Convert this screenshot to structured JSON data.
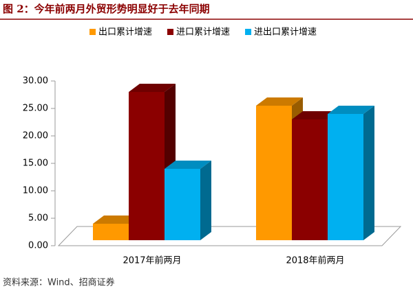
{
  "chart_data": {
    "type": "bar3d",
    "title": "图 2：今年前两月外贸形势明显好于去年同期",
    "source": "资料来源：Wind、招商证券",
    "categories": [
      "2017年前两月",
      "2018年前两月"
    ],
    "series": [
      {
        "name": "出口累计增速",
        "color": "#FF9900",
        "values": [
          3,
          24.5
        ]
      },
      {
        "name": "进口累计增速",
        "color": "#8B0000",
        "values": [
          27,
          22
        ]
      },
      {
        "name": "进出口累计增速",
        "color": "#00B0F0",
        "values": [
          13,
          23
        ]
      }
    ],
    "ylim": [
      0,
      30
    ],
    "yticks": [
      {
        "value": 0,
        "label": "0.00"
      },
      {
        "value": 5,
        "label": "5.00"
      },
      {
        "value": 10,
        "label": "10.00"
      },
      {
        "value": 15,
        "label": "15.00"
      },
      {
        "value": 20,
        "label": "20.00"
      },
      {
        "value": 25,
        "label": "25.00"
      },
      {
        "value": 30,
        "label": "30.00"
      }
    ],
    "legend": "top"
  }
}
